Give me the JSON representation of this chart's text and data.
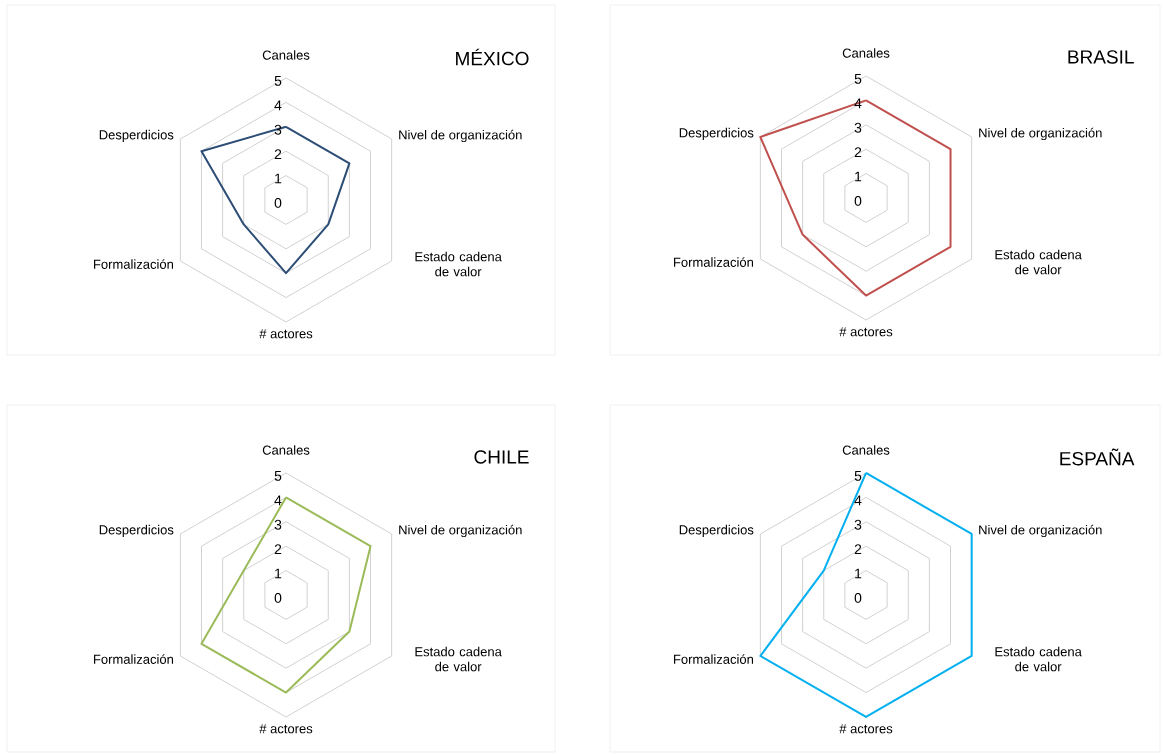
{
  "chart_data": [
    {
      "type": "radar",
      "title": "MÉXICO",
      "categories": [
        "Canales",
        "Nivel de organización",
        "Estado cadena de valor",
        "# actores",
        "Formalización",
        "Desperdicios"
      ],
      "series": [
        {
          "color": "#2c4d75",
          "values": [
            3,
            3,
            2,
            3,
            2,
            4
          ]
        }
      ],
      "ylim": [
        0,
        5
      ],
      "yticks": [
        0,
        1,
        2,
        3,
        4,
        5
      ],
      "grid": true
    },
    {
      "type": "radar",
      "title": "BRASIL",
      "categories": [
        "Canales",
        "Nivel de organización",
        "Estado cadena de valor",
        "# actores",
        "Formalización",
        "Desperdicios"
      ],
      "series": [
        {
          "color": "#c0504d",
          "values": [
            4,
            4,
            4,
            4,
            3,
            5
          ]
        }
      ],
      "ylim": [
        0,
        5
      ],
      "yticks": [
        0,
        1,
        2,
        3,
        4,
        5
      ],
      "grid": true
    },
    {
      "type": "radar",
      "title": "CHILE",
      "categories": [
        "Canales",
        "Nivel de organización",
        "Estado cadena de valor",
        "# actores",
        "Formalización",
        "Desperdicios"
      ],
      "series": [
        {
          "color": "#9bbb59",
          "values": [
            4,
            4,
            3,
            4,
            4,
            2
          ]
        }
      ],
      "ylim": [
        0,
        5
      ],
      "yticks": [
        0,
        1,
        2,
        3,
        4,
        5
      ],
      "grid": true
    },
    {
      "type": "radar",
      "title": "ESPAÑA",
      "categories": [
        "Canales",
        "Nivel de organización",
        "Estado cadena de valor",
        "# actores",
        "Formalización",
        "Desperdicios"
      ],
      "series": [
        {
          "color": "#00b0f0",
          "values": [
            5,
            5,
            5,
            5,
            5,
            2
          ]
        }
      ],
      "ylim": [
        0,
        5
      ],
      "yticks": [
        0,
        1,
        2,
        3,
        4,
        5
      ],
      "grid": true
    }
  ]
}
